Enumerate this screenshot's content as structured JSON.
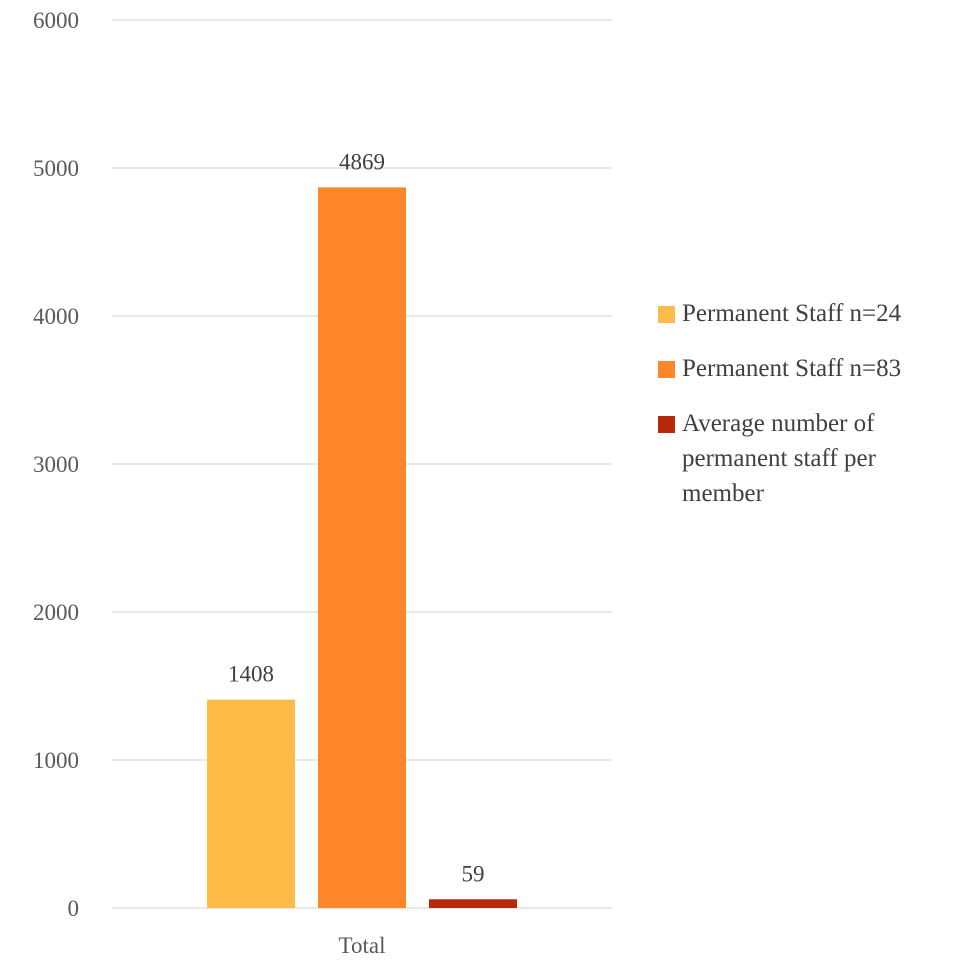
{
  "chart_data": {
    "type": "bar",
    "categories": [
      "Total"
    ],
    "series": [
      {
        "name": "Permanent Staff n=24",
        "values": [
          1408
        ],
        "color": "#fdbb47"
      },
      {
        "name": "Permanent Staff n=83",
        "values": [
          4869
        ],
        "color": "#fd8628"
      },
      {
        "name": "Average number of permanent staff per member",
        "values": [
          59
        ],
        "color": "#b62a0b"
      }
    ],
    "data_labels": [
      "1408",
      "4869",
      "59"
    ],
    "ylim": [
      0,
      6000
    ],
    "yticks": [
      "0",
      "1000",
      "2000",
      "3000",
      "4000",
      "5000",
      "6000"
    ],
    "grid": true,
    "legend_position": "right",
    "title": "",
    "xlabel": "",
    "ylabel": ""
  }
}
